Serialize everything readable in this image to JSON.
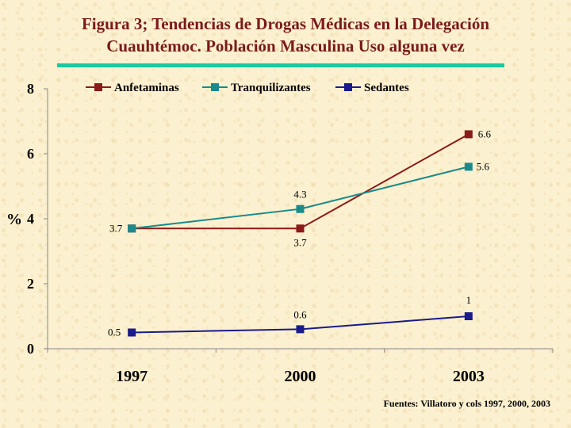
{
  "title": {
    "line1": "Figura 3; Tendencias de Drogas Médicas en  la Delegación",
    "line2": "Cuauhtémoc. Población Masculina Uso alguna vez"
  },
  "source": "Fuentes: Villatoro y cols 1997, 2000, 2003",
  "chart_data": {
    "type": "line",
    "categories": [
      "1997",
      "2000",
      "2003"
    ],
    "ylabel": "%",
    "ylim": [
      0,
      8
    ],
    "yticks": [
      "0",
      "2",
      "4",
      "6",
      "8"
    ],
    "legend_position": "top",
    "grid": false,
    "series": [
      {
        "name": "Anfetaminas",
        "color": "#8b1a1a",
        "values": [
          3.7,
          3.7,
          6.6
        ],
        "labels": [
          "",
          "3.7",
          "6.6"
        ]
      },
      {
        "name": "Tranquilizantes",
        "color": "#1a8a8a",
        "values": [
          3.7,
          4.3,
          5.6
        ],
        "labels": [
          "3.7",
          "4.3",
          "5.6"
        ]
      },
      {
        "name": "Sedantes",
        "color": "#1a1a8a",
        "values": [
          0.5,
          0.6,
          1
        ],
        "labels": [
          "0.5",
          "0.6",
          "1"
        ]
      }
    ]
  }
}
